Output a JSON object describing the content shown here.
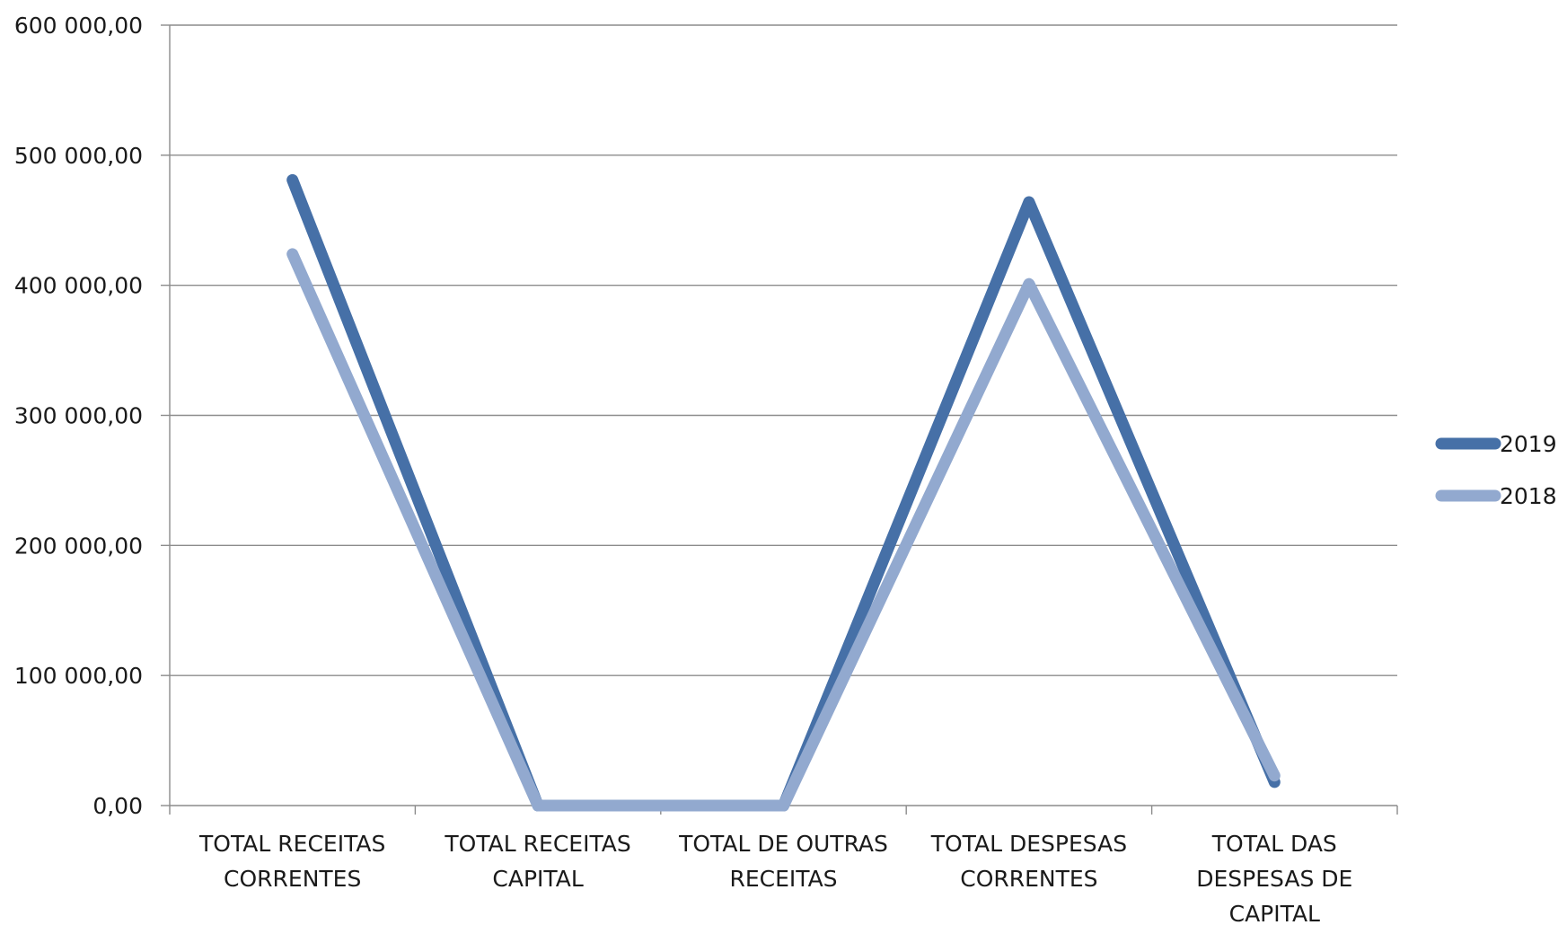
{
  "chart_data": {
    "type": "line",
    "categories": [
      [
        "TOTAL RECEITAS",
        "CORRENTES"
      ],
      [
        "TOTAL RECEITAS",
        "CAPITAL"
      ],
      [
        "TOTAL DE OUTRAS",
        "RECEITAS"
      ],
      [
        "TOTAL DESPESAS",
        "CORRENTES"
      ],
      [
        "TOTAL DAS",
        "DESPESAS DE",
        "CAPITAL"
      ]
    ],
    "series": [
      {
        "name": "2019",
        "color": "#4670a7",
        "values": [
          481000,
          0,
          0,
          464000,
          18000
        ]
      },
      {
        "name": "2018",
        "color": "#92a9cf",
        "values": [
          424000,
          0,
          0,
          401000,
          23000
        ]
      }
    ],
    "y_ticks": [
      {
        "value": 0,
        "label": "0,00"
      },
      {
        "value": 100000,
        "label": "100 000,00"
      },
      {
        "value": 200000,
        "label": "200 000,00"
      },
      {
        "value": 300000,
        "label": "300 000,00"
      },
      {
        "value": 400000,
        "label": "400 000,00"
      },
      {
        "value": 500000,
        "label": "500 000,00"
      },
      {
        "value": 600000,
        "label": "600 000,00"
      }
    ],
    "ylim": [
      0,
      600000
    ],
    "grid": true,
    "legend_position": "right"
  }
}
